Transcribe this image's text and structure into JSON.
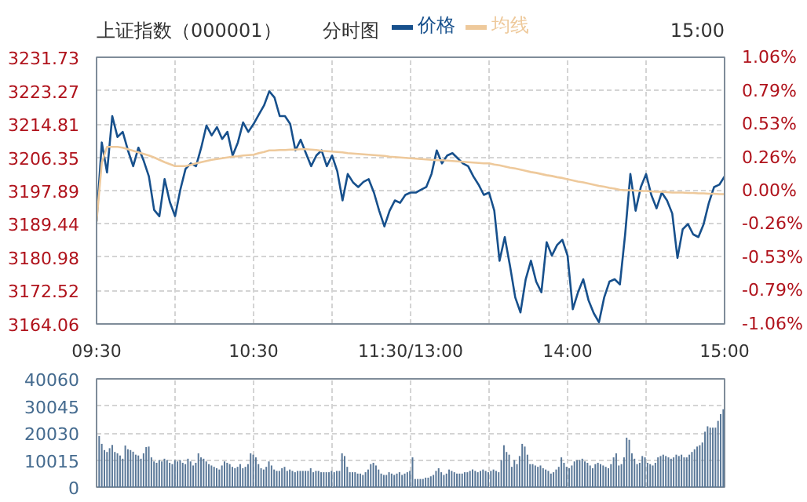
{
  "chart_data": [
    {
      "type": "line",
      "title": "上证指数（000001）",
      "subtitle": "分时图",
      "annotations": [
        "15:00"
      ],
      "categories": [
        "09:30",
        null,
        null,
        null,
        null,
        null,
        null,
        null,
        null,
        null,
        null,
        null,
        null,
        null,
        null,
        null,
        null,
        null,
        null,
        null,
        null,
        null,
        null,
        null,
        null,
        null,
        null,
        null,
        null,
        null,
        "10:30",
        null,
        null,
        null,
        null,
        null,
        null,
        null,
        null,
        null,
        null,
        null,
        null,
        null,
        null,
        null,
        null,
        null,
        null,
        null,
        null,
        null,
        null,
        null,
        null,
        null,
        null,
        null,
        null,
        null,
        "11:30/13:00",
        null,
        null,
        null,
        null,
        null,
        null,
        null,
        null,
        null,
        null,
        null,
        null,
        null,
        null,
        null,
        null,
        null,
        null,
        null,
        null,
        null,
        null,
        null,
        null,
        null,
        null,
        null,
        null,
        null,
        "14:00",
        null,
        null,
        null,
        null,
        null,
        null,
        null,
        null,
        null,
        null,
        null,
        null,
        null,
        null,
        null,
        null,
        null,
        null,
        null,
        null,
        null,
        null,
        null,
        null,
        null,
        null,
        null,
        null,
        null,
        "15:00"
      ],
      "ylim": [
        3164.06,
        3231.73
      ],
      "yticks": [
        3164.06,
        3172.52,
        3180.98,
        3189.44,
        3197.89,
        3206.35,
        3214.81,
        3223.27,
        3231.73
      ],
      "y2lim": [
        -1.06,
        1.06
      ],
      "y2ticks": [
        {
          "value": -1.06,
          "label": "-1.06%"
        },
        {
          "value": -0.79,
          "label": "-0.79%"
        },
        {
          "value": -0.53,
          "label": "-0.53%"
        },
        {
          "value": -0.26,
          "label": "-0.26%"
        },
        {
          "value": 0,
          "label": "0.00%"
        },
        {
          "value": 0.26,
          "label": "0.26%"
        },
        {
          "value": 0.53,
          "label": "0.53%"
        },
        {
          "value": 0.79,
          "label": "0.79%"
        },
        {
          "value": 1.06,
          "label": "1.06%"
        }
      ],
      "grid": true,
      "legend": "top",
      "series": [
        {
          "name": "价格",
          "color": "#17508c",
          "values": [
            3190.1,
            3210.1,
            3202.5,
            3216.8,
            3211.5,
            3212.8,
            3208.1,
            3204.1,
            3208.8,
            3205.5,
            3201.5,
            3193.0,
            3191.4,
            3200.8,
            3195.0,
            3191.4,
            3198.1,
            3203.4,
            3204.8,
            3204.1,
            3208.8,
            3214.4,
            3211.9,
            3214.0,
            3211.0,
            3212.8,
            3206.8,
            3210.1,
            3215.2,
            3212.8,
            3214.8,
            3217.2,
            3219.5,
            3223.1,
            3221.5,
            3216.8,
            3216.8,
            3214.8,
            3208.1,
            3210.8,
            3207.4,
            3204.1,
            3206.8,
            3208.1,
            3204.1,
            3206.8,
            3202.8,
            3195.4,
            3202.1,
            3200.0,
            3198.8,
            3200.1,
            3200.8,
            3197.4,
            3192.8,
            3188.8,
            3192.8,
            3195.4,
            3194.8,
            3196.8,
            3197.4,
            3197.4,
            3198.1,
            3198.8,
            3202.1,
            3208.1,
            3204.8,
            3206.8,
            3207.4,
            3206.1,
            3204.8,
            3204.1,
            3201.5,
            3199.4,
            3196.8,
            3197.4,
            3192.8,
            3180.1,
            3186.1,
            3178.8,
            3170.8,
            3167.0,
            3175.4,
            3180.1,
            3174.8,
            3172.1,
            3184.8,
            3181.4,
            3184.1,
            3185.4,
            3181.4,
            3167.8,
            3172.1,
            3175.4,
            3170.1,
            3166.8,
            3164.5,
            3170.8,
            3174.8,
            3175.4,
            3174.1,
            3186.8,
            3202.1,
            3192.8,
            3198.8,
            3202.1,
            3196.8,
            3193.4,
            3197.4,
            3195.4,
            3192.1,
            3180.8,
            3188.1,
            3189.4,
            3186.8,
            3186.1,
            3189.4,
            3194.8,
            3198.8,
            3199.4,
            3201.5
          ]
        },
        {
          "name": "均线",
          "color": "#eec99b",
          "values": [
            3190.0,
            3205.0,
            3209.0,
            3209.0,
            3209.0,
            3208.8,
            3208.4,
            3208.0,
            3207.6,
            3207.2,
            3206.8,
            3206.3,
            3205.7,
            3205.1,
            3204.6,
            3204.1,
            3204.1,
            3204.1,
            3204.4,
            3204.8,
            3205.1,
            3205.4,
            3205.7,
            3205.9,
            3206.1,
            3206.3,
            3206.5,
            3206.6,
            3206.8,
            3206.9,
            3207.0,
            3207.4,
            3207.7,
            3208.1,
            3208.1,
            3208.2,
            3208.2,
            3208.3,
            3208.3,
            3208.4,
            3208.4,
            3208.3,
            3208.2,
            3208.0,
            3207.9,
            3207.8,
            3207.7,
            3207.6,
            3207.4,
            3207.3,
            3207.2,
            3207.1,
            3207.0,
            3206.9,
            3206.8,
            3206.7,
            3206.5,
            3206.4,
            3206.3,
            3206.2,
            3206.1,
            3206.0,
            3205.9,
            3205.8,
            3205.7,
            3205.6,
            3205.6,
            3205.5,
            3205.4,
            3205.3,
            3205.2,
            3205.1,
            3205.0,
            3204.9,
            3204.8,
            3204.8,
            3204.5,
            3204.3,
            3204.0,
            3203.7,
            3203.5,
            3203.2,
            3202.9,
            3202.6,
            3202.4,
            3202.1,
            3201.8,
            3201.6,
            3201.3,
            3201.1,
            3200.8,
            3200.5,
            3200.2,
            3200.0,
            3199.7,
            3199.4,
            3199.1,
            3198.9,
            3198.6,
            3198.4,
            3198.1,
            3198.0,
            3198.0,
            3197.9,
            3197.8,
            3197.8,
            3197.7,
            3197.6,
            3197.6,
            3197.5,
            3197.4,
            3197.4,
            3197.4,
            3197.3,
            3197.3,
            3197.2,
            3197.2,
            3197.1,
            3197.1,
            3197.0,
            3197.0
          ]
        }
      ]
    },
    {
      "type": "bar",
      "tick_labels": "y",
      "grid": true,
      "categories": [
        null,
        null,
        null,
        null,
        null,
        null,
        null,
        null,
        null,
        null,
        null,
        null,
        null,
        null,
        null,
        null,
        null,
        null,
        null,
        null,
        null,
        null,
        null,
        null,
        null,
        null,
        null,
        null,
        null,
        null,
        null,
        null,
        null,
        null,
        null,
        null,
        null,
        null,
        null,
        null,
        null,
        null,
        null,
        null,
        null,
        null,
        null,
        null,
        null,
        null,
        null,
        null,
        null,
        null,
        null,
        null,
        null,
        null,
        null,
        null,
        null,
        null,
        null,
        null,
        null,
        null,
        null,
        null,
        null,
        null,
        null,
        null,
        null,
        null,
        null,
        null,
        null,
        null,
        null,
        null,
        null,
        null,
        null,
        null,
        null,
        null,
        null,
        null,
        null,
        null,
        null,
        null,
        null,
        null,
        null,
        null,
        null,
        null,
        null,
        null,
        null,
        null,
        null,
        null,
        null,
        null,
        null,
        null,
        null,
        null,
        null,
        null,
        null,
        null,
        null,
        null,
        null,
        null,
        null,
        null,
        null,
        null,
        null,
        null,
        null,
        null,
        null,
        null,
        null,
        null,
        null,
        null,
        null,
        null,
        null,
        null,
        null,
        null,
        null,
        null,
        null,
        null,
        null,
        null,
        null,
        null,
        null,
        null,
        null,
        null,
        null,
        null,
        null,
        null,
        null,
        null,
        null,
        null,
        null,
        null,
        null,
        null,
        null,
        null,
        null,
        null,
        null,
        null,
        null,
        null,
        null,
        null,
        null,
        null,
        null,
        null,
        null,
        null,
        null,
        null,
        null,
        null,
        null,
        null,
        null,
        null,
        null,
        null,
        null,
        null,
        null,
        null,
        null,
        null,
        null,
        null,
        null,
        null,
        null,
        null,
        null,
        null,
        null,
        null,
        null,
        null,
        null,
        null,
        null,
        null,
        null,
        null,
        null,
        null,
        null,
        null,
        null,
        null,
        null,
        null,
        null,
        null,
        null,
        null,
        null,
        null,
        null,
        null,
        null,
        null,
        null,
        null,
        null,
        null,
        null,
        null,
        null,
        null,
        null,
        null
      ],
      "ylim": [
        0,
        40060
      ],
      "yticks": [
        0,
        10015,
        20030,
        30045,
        40060
      ],
      "color": "#5a7898",
      "values": [
        18900,
        16000,
        13700,
        13000,
        14400,
        15600,
        13000,
        12500,
        11700,
        10500,
        15400,
        14000,
        13700,
        13100,
        12000,
        11700,
        10500,
        12500,
        14800,
        15000,
        11000,
        9500,
        9000,
        10000,
        9500,
        10500,
        10000,
        9000,
        8500,
        10000,
        9500,
        10000,
        9000,
        8500,
        10500,
        9500,
        8000,
        9000,
        12500,
        11000,
        10500,
        9500,
        8500,
        8000,
        7500,
        7000,
        6500,
        8000,
        9500,
        9000,
        8500,
        7500,
        7000,
        7500,
        8500,
        7000,
        7500,
        8500,
        12500,
        12000,
        11000,
        8500,
        7000,
        6500,
        7500,
        9500,
        8000,
        6500,
        6000,
        6000,
        7000,
        7500,
        6000,
        6500,
        6000,
        5500,
        6000,
        6000,
        6000,
        6000,
        6000,
        7000,
        5500,
        6000,
        6000,
        5500,
        5500,
        5500,
        5500,
        6000,
        5500,
        6000,
        6000,
        12500,
        11500,
        7500,
        5500,
        5500,
        5500,
        5000,
        5000,
        4500,
        5500,
        6500,
        8500,
        9000,
        8000,
        6500,
        5000,
        4500,
        4500,
        5500,
        5000,
        4500,
        5000,
        5500,
        4500,
        5000,
        5500,
        6000,
        11000,
        3000,
        3000,
        3000,
        3000,
        3500,
        3500,
        4000,
        4500,
        6000,
        7000,
        5500,
        4500,
        5000,
        6500,
        6000,
        5500,
        5000,
        5000,
        5000,
        5500,
        5500,
        6000,
        6500,
        6000,
        5500,
        6000,
        6500,
        6000,
        5500,
        6000,
        6500,
        6000,
        5500,
        10000,
        15500,
        13000,
        12000,
        7500,
        10000,
        8500,
        11500,
        16000,
        15000,
        12000,
        8500,
        8500,
        8000,
        7500,
        8000,
        7000,
        6500,
        6000,
        5000,
        5500,
        6500,
        7500,
        11000,
        9000,
        7500,
        7000,
        8000,
        9500,
        10000,
        10000,
        10500,
        9500,
        9000,
        8000,
        7000,
        8500,
        9000,
        8500,
        8000,
        7500,
        7000,
        8500,
        11000,
        12500,
        8000,
        8500,
        11000,
        18300,
        17500,
        12500,
        10500,
        8500,
        9000,
        11500,
        11000,
        9000,
        8500,
        8000,
        9000,
        11000,
        11500,
        12000,
        11500,
        11000,
        10500,
        11000,
        12000,
        11500,
        12000,
        11000,
        11000,
        12000,
        13000,
        14000,
        15000,
        15500,
        16500,
        20500,
        22500,
        22000,
        22000,
        22000,
        24500,
        27000,
        28800
      ]
    }
  ]
}
